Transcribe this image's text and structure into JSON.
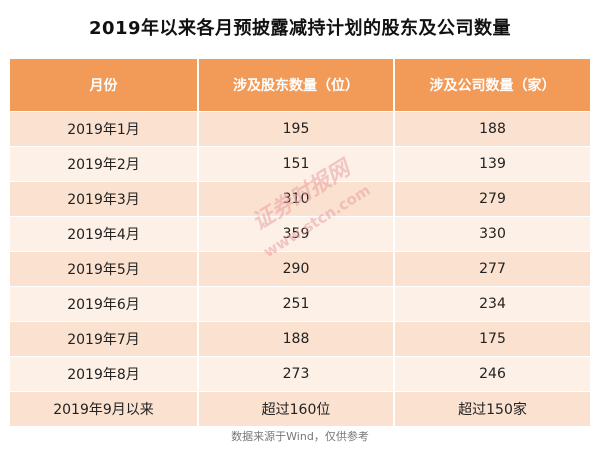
{
  "title": "2019年以来各月预披露减持计划的股东及公司数量",
  "table": {
    "headers": [
      "月份",
      "涉及股东数量（位）",
      "涉及公司数量（家）"
    ],
    "rows": [
      [
        "2019年1月",
        "195",
        "188"
      ],
      [
        "2019年2月",
        "151",
        "139"
      ],
      [
        "2019年3月",
        "310",
        "279"
      ],
      [
        "2019年4月",
        "359",
        "330"
      ],
      [
        "2019年5月",
        "290",
        "277"
      ],
      [
        "2019年6月",
        "251",
        "234"
      ],
      [
        "2019年7月",
        "188",
        "175"
      ],
      [
        "2019年8月",
        "273",
        "246"
      ],
      [
        "2019年9月以来",
        "超过160位",
        "超过150家"
      ]
    ]
  },
  "footer": "数据来源于Wind，仅供参考",
  "watermark": {
    "line1": "证券时报网",
    "line2": "www.stcn.com"
  },
  "colors": {
    "header_bg": "#f29a57",
    "row_odd": "#fbe1cf",
    "row_even": "#fdf0e6",
    "watermark": "#e8a3a3"
  }
}
